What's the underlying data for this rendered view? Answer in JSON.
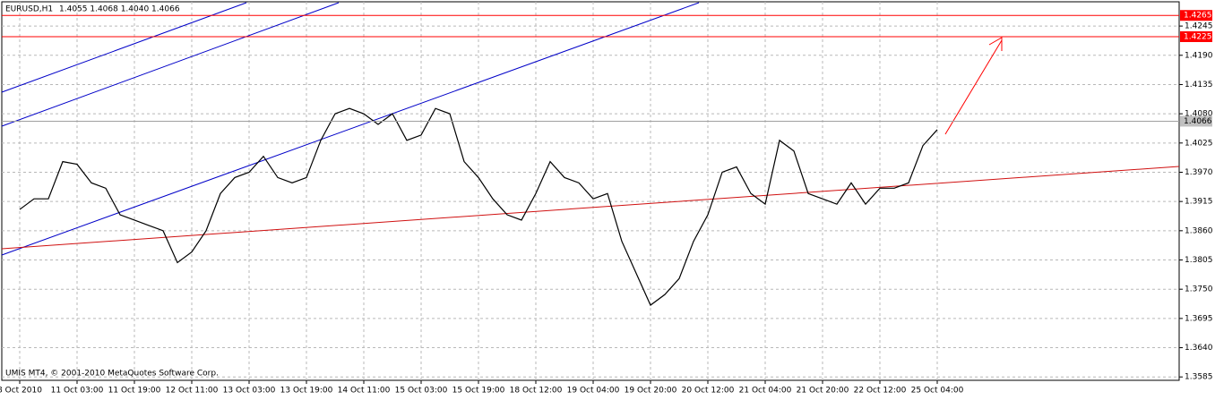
{
  "chart_data": {
    "type": "line",
    "title": "EURUSD,H1",
    "ohlc": "1.4055 1.4068 1.4040 1.4066",
    "footer": "UMIS MT4, © 2001-2010 MetaQuotes Software Corp.",
    "categories": [
      "8 Oct 2010",
      null,
      null,
      null,
      "11 Oct 03:00",
      null,
      null,
      null,
      "11 Oct 19:00",
      null,
      null,
      null,
      "12 Oct 11:00",
      null,
      null,
      null,
      "13 Oct 03:00",
      null,
      null,
      null,
      "13 Oct 19:00",
      null,
      null,
      null,
      "14 Oct 11:00",
      null,
      null,
      null,
      "15 Oct 03:00",
      null,
      null,
      null,
      "15 Oct 19:00",
      null,
      null,
      null,
      "18 Oct 12:00",
      null,
      null,
      null,
      "19 Oct 04:00",
      null,
      null,
      null,
      "19 Oct 20:00",
      null,
      null,
      null,
      "20 Oct 12:00",
      null,
      null,
      null,
      "21 Oct 04:00",
      null,
      null,
      null,
      "21 Oct 20:00",
      null,
      null,
      null,
      "22 Oct 12:00",
      null,
      null,
      null,
      "25 Oct 04:00"
    ],
    "values": [
      1.39,
      1.392,
      1.392,
      1.399,
      1.3985,
      1.395,
      1.394,
      1.389,
      1.388,
      1.387,
      1.386,
      1.38,
      1.382,
      1.386,
      1.393,
      1.396,
      1.397,
      1.4,
      1.396,
      1.395,
      1.396,
      1.403,
      1.408,
      1.409,
      1.408,
      1.406,
      1.408,
      1.403,
      1.404,
      1.409,
      1.408,
      1.399,
      1.396,
      1.392,
      1.389,
      1.388,
      1.393,
      1.399,
      1.396,
      1.395,
      1.392,
      1.393,
      1.384,
      1.378,
      1.372,
      1.374,
      1.377,
      1.384,
      1.389,
      1.397,
      1.398,
      1.393,
      1.391,
      1.403,
      1.401,
      1.393,
      1.392,
      1.391,
      1.395,
      1.391,
      1.394,
      1.394,
      1.395,
      1.402,
      1.405
    ],
    "color": "#000000",
    "ylim": [
      1.3582,
      1.4294
    ],
    "yticks": [
      1.4245,
      {
        "value": 1.419,
        "label": "1.4190"
      },
      1.4135,
      {
        "value": 1.408,
        "label": "1.4080"
      },
      1.4025,
      {
        "value": 1.397,
        "label": "1.3970"
      },
      1.3915,
      {
        "value": 1.386,
        "label": "1.3860"
      },
      1.3805,
      {
        "value": 1.375,
        "label": "1.3750"
      },
      1.3695,
      {
        "value": 1.364,
        "label": "1.3640"
      },
      1.3585
    ],
    "levels": [
      1.4265,
      1.4225
    ],
    "level_color": "#ff0000",
    "current_price": 1.4066,
    "grid": true
  }
}
